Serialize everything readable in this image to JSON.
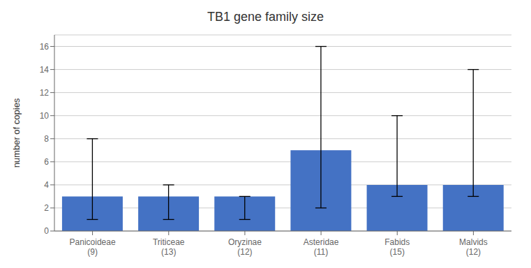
{
  "chart_data": {
    "type": "bar",
    "title": "TB1 gene family size",
    "ylabel": "number of copies",
    "categories": [
      "Panicoideae\n(9)",
      "Triticeae\n(13)",
      "Oryzinae\n(12)",
      "Asteridae\n(11)",
      "Fabids\n(15)",
      "Malvids\n(12)"
    ],
    "values": [
      3,
      3,
      3,
      7,
      4,
      4
    ],
    "err_low": [
      1,
      1,
      1,
      2,
      3,
      3
    ],
    "err_high": [
      8,
      4,
      3,
      16,
      10,
      14
    ],
    "color": "#4472C4",
    "ylim": [
      0,
      17
    ],
    "yticks": [
      0,
      2,
      4,
      6,
      8,
      10,
      12,
      14,
      16
    ],
    "grid": true
  }
}
